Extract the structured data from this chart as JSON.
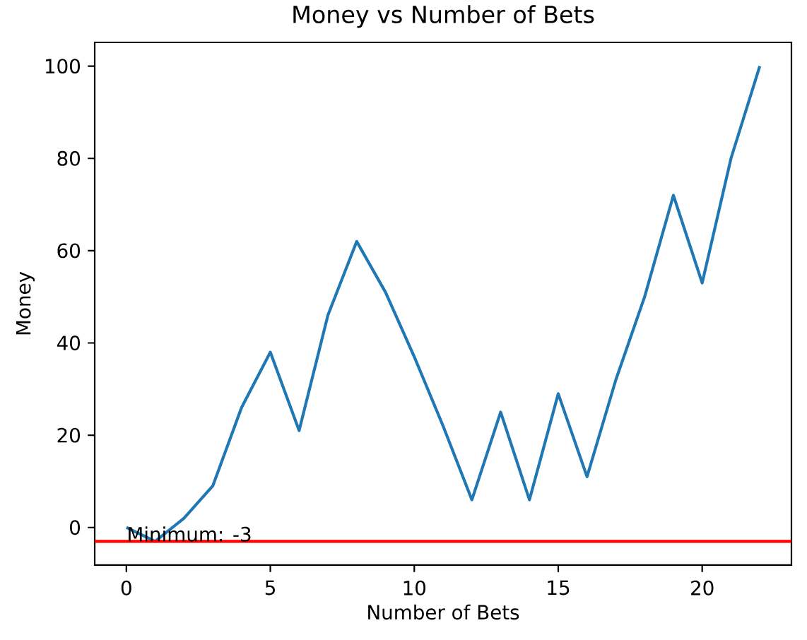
{
  "chart_data": {
    "type": "line",
    "title": "Money vs Number of Bets",
    "xlabel": "Number of Bets",
    "ylabel": "Money",
    "x": [
      0,
      1,
      2,
      3,
      4,
      5,
      6,
      7,
      8,
      9,
      10,
      11,
      12,
      13,
      14,
      15,
      16,
      17,
      18,
      19,
      20,
      21,
      22
    ],
    "series": [
      {
        "color": "#1f77b4",
        "values": [
          0,
          -3,
          2,
          9,
          26,
          38,
          21,
          46,
          62,
          51,
          37,
          22,
          6,
          25,
          6,
          29,
          11,
          32,
          50,
          72,
          53,
          80,
          100
        ]
      }
    ],
    "xlim": [
      -1.1,
      23.1
    ],
    "ylim": [
      -8.15,
      105.15
    ],
    "xticks": [
      0,
      5,
      10,
      15,
      20
    ],
    "yticks": [
      0,
      20,
      40,
      60,
      80,
      100
    ],
    "line_style": "solid",
    "ref_lines": [
      {
        "axis": "y",
        "value": -3,
        "color": "#ff0000"
      }
    ],
    "annotations": [
      {
        "text": "Minimum: -3",
        "x": 0,
        "y": -3
      }
    ]
  }
}
